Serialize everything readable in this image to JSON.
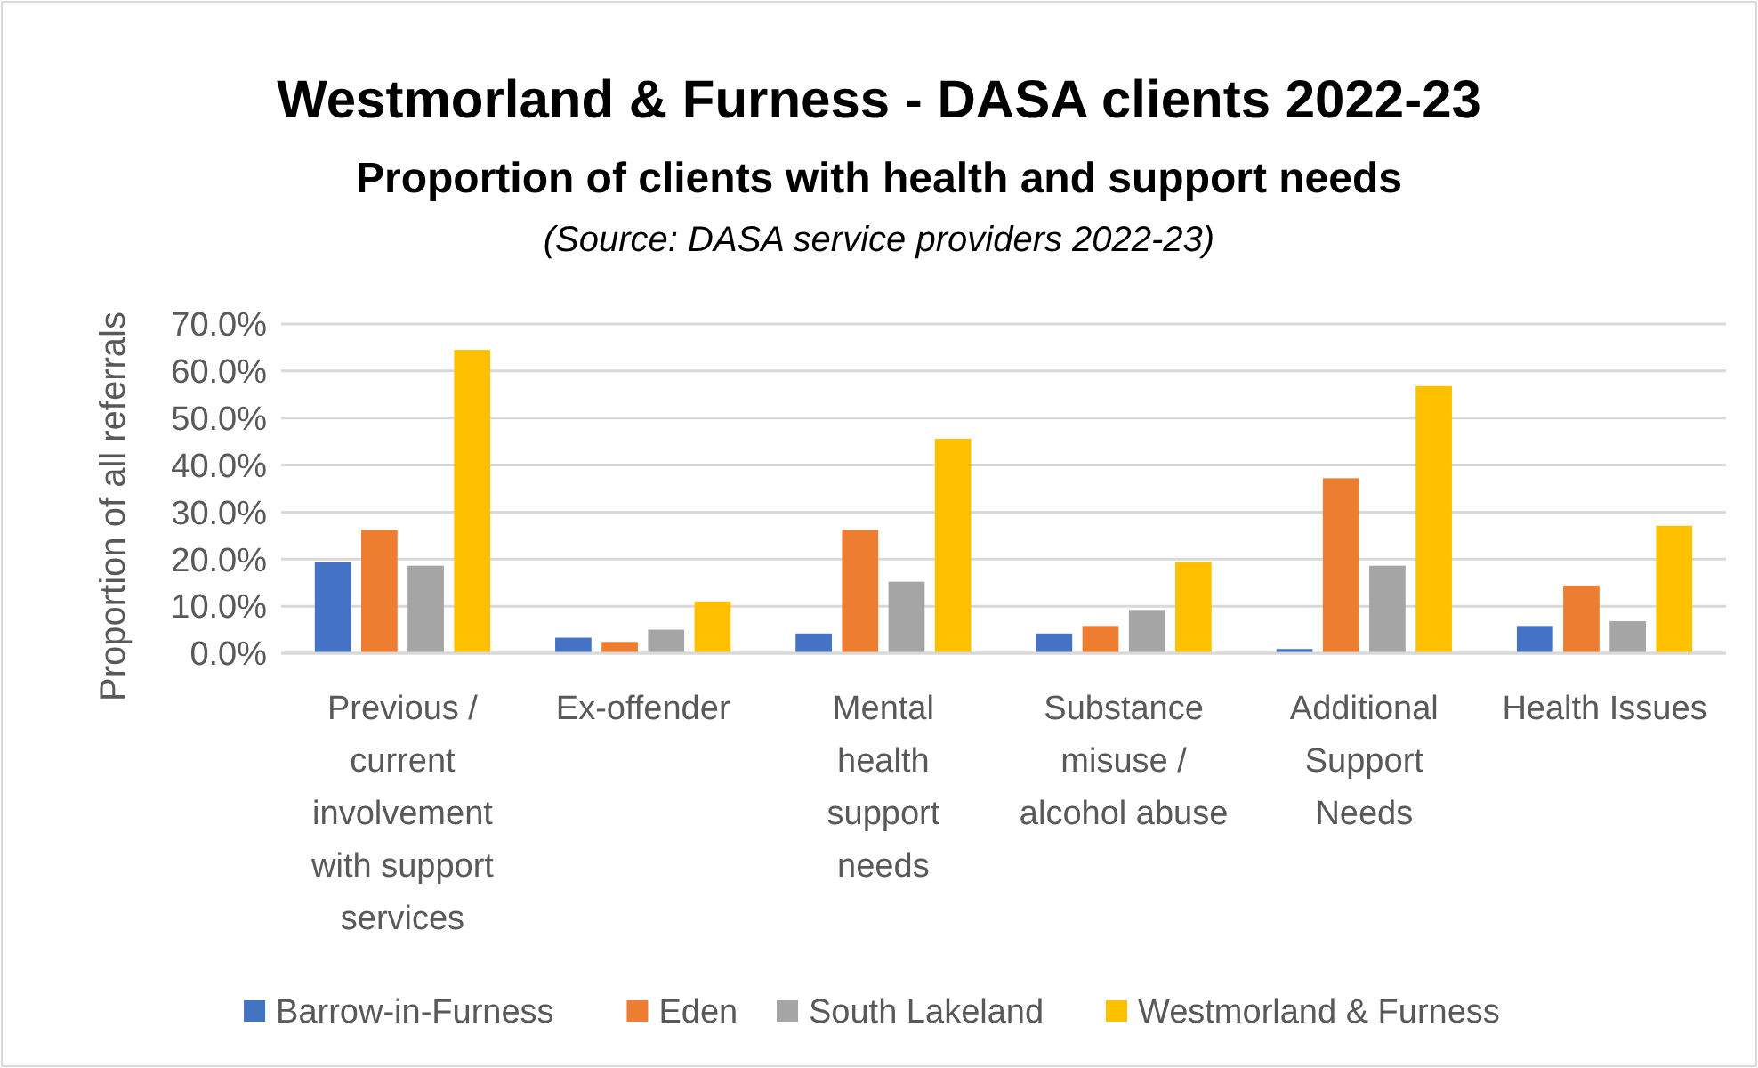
{
  "chart_data": {
    "type": "bar",
    "title": "Westmorland & Furness - DASA clients 2022-23",
    "subtitle": "Proportion of clients with health and support needs",
    "annotations": [
      "(Source: DASA service providers 2022-23)"
    ],
    "ylabel": "Proportion of all referrals",
    "categories": [
      "Previous /\ncurrent\ninvolvement\nwith support\nservices",
      "Ex-offender",
      "Mental\nhealth\nsupport\nneeds",
      "Substance\nmisuse /\nalcohol abuse",
      "Additional\nSupport\nNeeds",
      "Health Issues"
    ],
    "series": [
      {
        "name": "Barrow-in-Furness",
        "color": "#4472c4",
        "values": [
          19.3,
          3.3,
          4.2,
          4.2,
          0.9,
          5.8
        ]
      },
      {
        "name": "Eden",
        "color": "#ed7d31",
        "values": [
          26.2,
          2.4,
          26.2,
          5.8,
          37.2,
          14.4
        ]
      },
      {
        "name": "South Lakeland",
        "color": "#a5a5a5",
        "values": [
          18.6,
          5.0,
          15.2,
          9.2,
          18.6,
          6.8
        ]
      },
      {
        "name": "Westmorland & Furness",
        "color": "#ffc000",
        "values": [
          64.5,
          11.0,
          45.6,
          19.4,
          56.8,
          27.1
        ]
      }
    ],
    "ylim": [
      0,
      70
    ],
    "yticks": [
      {
        "value": 0,
        "label": "0.0%"
      },
      {
        "value": 10,
        "label": "10.0%"
      },
      {
        "value": 20,
        "label": "20.0%"
      },
      {
        "value": 30,
        "label": "30.0%"
      },
      {
        "value": 40,
        "label": "40.0%"
      },
      {
        "value": 50,
        "label": "50.0%"
      },
      {
        "value": 60,
        "label": "60.0%"
      },
      {
        "value": 70,
        "label": "70.0%"
      }
    ],
    "grid": "y",
    "legend": "bottom"
  }
}
